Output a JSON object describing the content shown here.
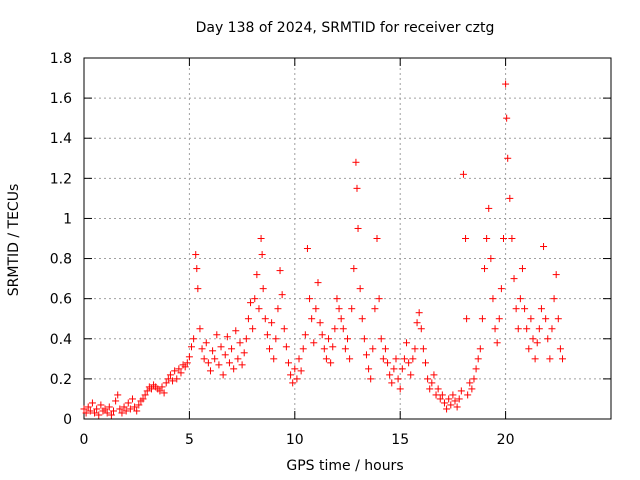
{
  "chart_data": {
    "type": "scatter",
    "title": "Day 138 of 2024, SRMTID for receiver cztg",
    "xlabel": "GPS time / hours",
    "ylabel": "SRMTID / TECUs",
    "xlim": [
      0,
      25
    ],
    "ylim": [
      0,
      1.8
    ],
    "x_ticks": [
      0,
      5,
      10,
      15,
      20
    ],
    "x_tick_labels": [
      "0",
      "5",
      "10",
      "15",
      "20"
    ],
    "y_ticks": [
      0,
      0.2,
      0.4,
      0.6,
      0.8,
      1,
      1.2,
      1.4,
      1.6,
      1.8
    ],
    "y_tick_labels": [
      "0",
      "0.2",
      "0.4",
      "0.6",
      "0.8",
      "1",
      "1.2",
      "1.4",
      "1.6",
      "1.8"
    ],
    "grid": true,
    "marker": "+",
    "marker_color": "#ff0000",
    "series": [
      {
        "name": "SRMTID",
        "points": [
          [
            0.0,
            0.05
          ],
          [
            0.1,
            0.03
          ],
          [
            0.2,
            0.06
          ],
          [
            0.3,
            0.04
          ],
          [
            0.4,
            0.08
          ],
          [
            0.5,
            0.03
          ],
          [
            0.6,
            0.05
          ],
          [
            0.7,
            0.02
          ],
          [
            0.8,
            0.07
          ],
          [
            0.9,
            0.04
          ],
          [
            1.0,
            0.05
          ],
          [
            1.1,
            0.03
          ],
          [
            1.2,
            0.06
          ],
          [
            1.3,
            0.02
          ],
          [
            1.4,
            0.04
          ],
          [
            1.5,
            0.09
          ],
          [
            1.6,
            0.12
          ],
          [
            1.7,
            0.05
          ],
          [
            1.8,
            0.03
          ],
          [
            1.9,
            0.06
          ],
          [
            2.0,
            0.04
          ],
          [
            2.1,
            0.08
          ],
          [
            2.2,
            0.05
          ],
          [
            2.3,
            0.1
          ],
          [
            2.4,
            0.06
          ],
          [
            2.5,
            0.04
          ],
          [
            2.6,
            0.07
          ],
          [
            2.7,
            0.09
          ],
          [
            2.8,
            0.1
          ],
          [
            2.9,
            0.12
          ],
          [
            3.0,
            0.14
          ],
          [
            3.1,
            0.16
          ],
          [
            3.2,
            0.15
          ],
          [
            3.3,
            0.17
          ],
          [
            3.4,
            0.16
          ],
          [
            3.5,
            0.15
          ],
          [
            3.6,
            0.14
          ],
          [
            3.7,
            0.16
          ],
          [
            3.8,
            0.13
          ],
          [
            3.9,
            0.18
          ],
          [
            4.0,
            0.2
          ],
          [
            4.1,
            0.22
          ],
          [
            4.2,
            0.19
          ],
          [
            4.3,
            0.24
          ],
          [
            4.4,
            0.2
          ],
          [
            4.5,
            0.25
          ],
          [
            4.6,
            0.23
          ],
          [
            4.7,
            0.27
          ],
          [
            4.8,
            0.26
          ],
          [
            4.9,
            0.28
          ],
          [
            5.0,
            0.31
          ],
          [
            5.1,
            0.36
          ],
          [
            5.2,
            0.4
          ],
          [
            5.3,
            0.82
          ],
          [
            5.35,
            0.75
          ],
          [
            5.4,
            0.65
          ],
          [
            5.5,
            0.45
          ],
          [
            5.6,
            0.35
          ],
          [
            5.7,
            0.3
          ],
          [
            5.8,
            0.38
          ],
          [
            5.9,
            0.28
          ],
          [
            6.0,
            0.24
          ],
          [
            6.1,
            0.34
          ],
          [
            6.2,
            0.3
          ],
          [
            6.3,
            0.42
          ],
          [
            6.4,
            0.27
          ],
          [
            6.5,
            0.36
          ],
          [
            6.6,
            0.22
          ],
          [
            6.7,
            0.32
          ],
          [
            6.8,
            0.41
          ],
          [
            6.9,
            0.28
          ],
          [
            7.0,
            0.35
          ],
          [
            7.1,
            0.25
          ],
          [
            7.2,
            0.44
          ],
          [
            7.3,
            0.3
          ],
          [
            7.4,
            0.38
          ],
          [
            7.5,
            0.27
          ],
          [
            7.6,
            0.33
          ],
          [
            7.7,
            0.4
          ],
          [
            7.8,
            0.5
          ],
          [
            7.9,
            0.58
          ],
          [
            8.0,
            0.45
          ],
          [
            8.1,
            0.6
          ],
          [
            8.2,
            0.72
          ],
          [
            8.3,
            0.55
          ],
          [
            8.4,
            0.9
          ],
          [
            8.45,
            0.82
          ],
          [
            8.5,
            0.65
          ],
          [
            8.6,
            0.5
          ],
          [
            8.7,
            0.42
          ],
          [
            8.8,
            0.35
          ],
          [
            8.9,
            0.48
          ],
          [
            9.0,
            0.3
          ],
          [
            9.1,
            0.4
          ],
          [
            9.2,
            0.55
          ],
          [
            9.3,
            0.74
          ],
          [
            9.4,
            0.62
          ],
          [
            9.5,
            0.45
          ],
          [
            9.6,
            0.36
          ],
          [
            9.7,
            0.28
          ],
          [
            9.8,
            0.22
          ],
          [
            9.9,
            0.18
          ],
          [
            10.0,
            0.25
          ],
          [
            10.1,
            0.2
          ],
          [
            10.2,
            0.3
          ],
          [
            10.3,
            0.24
          ],
          [
            10.4,
            0.35
          ],
          [
            10.5,
            0.42
          ],
          [
            10.6,
            0.85
          ],
          [
            10.7,
            0.6
          ],
          [
            10.8,
            0.5
          ],
          [
            10.9,
            0.38
          ],
          [
            11.0,
            0.55
          ],
          [
            11.1,
            0.68
          ],
          [
            11.2,
            0.48
          ],
          [
            11.3,
            0.42
          ],
          [
            11.4,
            0.35
          ],
          [
            11.5,
            0.3
          ],
          [
            11.6,
            0.4
          ],
          [
            11.7,
            0.28
          ],
          [
            11.8,
            0.36
          ],
          [
            11.9,
            0.45
          ],
          [
            12.0,
            0.6
          ],
          [
            12.1,
            0.55
          ],
          [
            12.2,
            0.5
          ],
          [
            12.3,
            0.45
          ],
          [
            12.4,
            0.35
          ],
          [
            12.5,
            0.4
          ],
          [
            12.6,
            0.3
          ],
          [
            12.7,
            0.55
          ],
          [
            12.8,
            0.75
          ],
          [
            12.9,
            1.28
          ],
          [
            12.95,
            1.15
          ],
          [
            13.0,
            0.95
          ],
          [
            13.1,
            0.65
          ],
          [
            13.2,
            0.5
          ],
          [
            13.3,
            0.4
          ],
          [
            13.4,
            0.32
          ],
          [
            13.5,
            0.25
          ],
          [
            13.6,
            0.2
          ],
          [
            13.7,
            0.35
          ],
          [
            13.8,
            0.55
          ],
          [
            13.9,
            0.9
          ],
          [
            14.0,
            0.6
          ],
          [
            14.1,
            0.4
          ],
          [
            14.2,
            0.3
          ],
          [
            14.3,
            0.35
          ],
          [
            14.4,
            0.28
          ],
          [
            14.5,
            0.22
          ],
          [
            14.6,
            0.18
          ],
          [
            14.7,
            0.25
          ],
          [
            14.8,
            0.3
          ],
          [
            14.9,
            0.2
          ],
          [
            15.0,
            0.15
          ],
          [
            15.1,
            0.25
          ],
          [
            15.2,
            0.3
          ],
          [
            15.3,
            0.38
          ],
          [
            15.4,
            0.28
          ],
          [
            15.5,
            0.22
          ],
          [
            15.6,
            0.3
          ],
          [
            15.7,
            0.35
          ],
          [
            15.8,
            0.48
          ],
          [
            15.9,
            0.53
          ],
          [
            16.0,
            0.45
          ],
          [
            16.1,
            0.35
          ],
          [
            16.2,
            0.28
          ],
          [
            16.3,
            0.2
          ],
          [
            16.4,
            0.15
          ],
          [
            16.5,
            0.18
          ],
          [
            16.6,
            0.22
          ],
          [
            16.7,
            0.12
          ],
          [
            16.8,
            0.15
          ],
          [
            16.9,
            0.1
          ],
          [
            17.0,
            0.12
          ],
          [
            17.1,
            0.08
          ],
          [
            17.2,
            0.05
          ],
          [
            17.3,
            0.1
          ],
          [
            17.4,
            0.07
          ],
          [
            17.5,
            0.12
          ],
          [
            17.6,
            0.09
          ],
          [
            17.7,
            0.06
          ],
          [
            17.8,
            0.1
          ],
          [
            17.9,
            0.14
          ],
          [
            18.0,
            1.22
          ],
          [
            18.1,
            0.9
          ],
          [
            18.15,
            0.5
          ],
          [
            18.2,
            0.12
          ],
          [
            18.3,
            0.18
          ],
          [
            18.4,
            0.15
          ],
          [
            18.5,
            0.2
          ],
          [
            18.6,
            0.25
          ],
          [
            18.7,
            0.3
          ],
          [
            18.8,
            0.35
          ],
          [
            18.9,
            0.5
          ],
          [
            19.0,
            0.75
          ],
          [
            19.1,
            0.9
          ],
          [
            19.2,
            1.05
          ],
          [
            19.3,
            0.8
          ],
          [
            19.4,
            0.6
          ],
          [
            19.5,
            0.45
          ],
          [
            19.6,
            0.38
          ],
          [
            19.7,
            0.5
          ],
          [
            19.8,
            0.65
          ],
          [
            19.9,
            0.9
          ],
          [
            20.0,
            1.67
          ],
          [
            20.05,
            1.5
          ],
          [
            20.1,
            1.3
          ],
          [
            20.2,
            1.1
          ],
          [
            20.3,
            0.9
          ],
          [
            20.4,
            0.7
          ],
          [
            20.5,
            0.55
          ],
          [
            20.6,
            0.45
          ],
          [
            20.7,
            0.6
          ],
          [
            20.8,
            0.75
          ],
          [
            20.9,
            0.55
          ],
          [
            21.0,
            0.45
          ],
          [
            21.1,
            0.35
          ],
          [
            21.2,
            0.5
          ],
          [
            21.3,
            0.4
          ],
          [
            21.4,
            0.3
          ],
          [
            21.5,
            0.38
          ],
          [
            21.6,
            0.45
          ],
          [
            21.7,
            0.55
          ],
          [
            21.8,
            0.86
          ],
          [
            21.9,
            0.5
          ],
          [
            22.0,
            0.4
          ],
          [
            22.1,
            0.3
          ],
          [
            22.2,
            0.45
          ],
          [
            22.3,
            0.6
          ],
          [
            22.4,
            0.72
          ],
          [
            22.5,
            0.5
          ],
          [
            22.6,
            0.35
          ],
          [
            22.7,
            0.3
          ]
        ]
      }
    ]
  }
}
